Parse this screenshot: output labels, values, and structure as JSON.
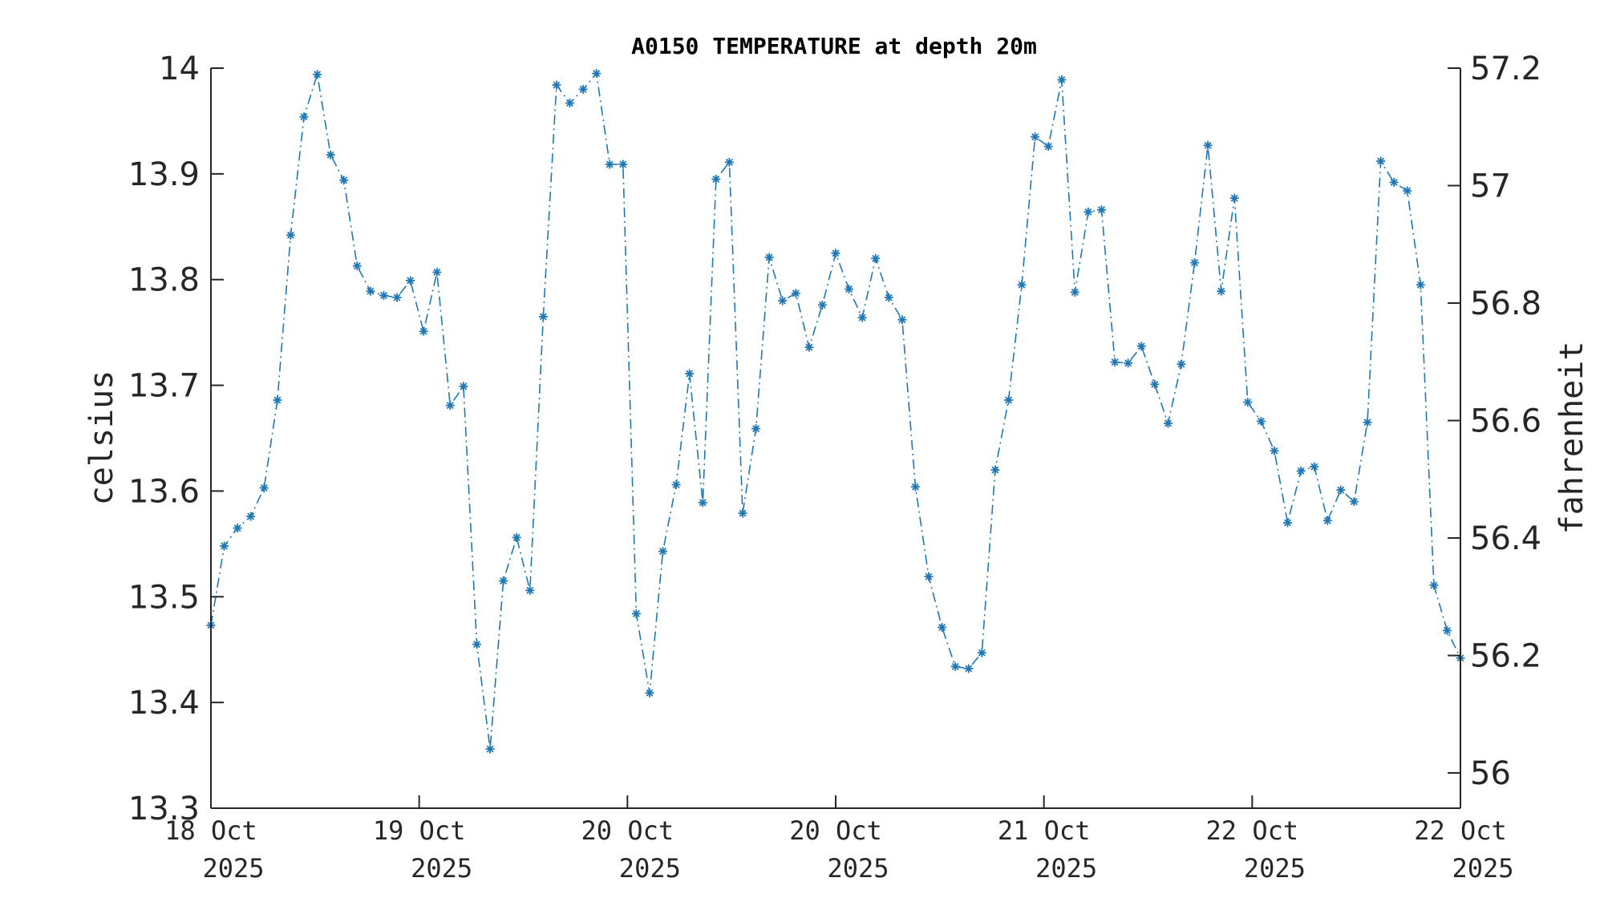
{
  "chart_data": {
    "type": "line",
    "title": "A0150 TEMPERATURE at depth 20m",
    "ylabel": "celsius",
    "ylabel_right": "fahrenheit",
    "ylim": [
      13.3,
      14.0
    ],
    "ylim_right": [
      55.94,
      57.2
    ],
    "yticks": [
      "13.3",
      "13.4",
      "13.5",
      "13.6",
      "13.7",
      "13.8",
      "13.9",
      "14"
    ],
    "yticks_right": [
      "56",
      "56.2",
      "56.4",
      "56.6",
      "56.8",
      "57",
      "57.2"
    ],
    "xticks": [
      [
        "18 Oct",
        "2025"
      ],
      [
        "19 Oct",
        "2025"
      ],
      [
        "20 Oct",
        "2025"
      ],
      [
        "20 Oct",
        "2025"
      ],
      [
        "21 Oct",
        "2025"
      ],
      [
        "22 Oct",
        "2025"
      ],
      [
        "22 Oct",
        "2025"
      ]
    ],
    "line_style": "dash-dot",
    "marker": "asterisk",
    "color": "#1f77b4",
    "grid": false,
    "series": [
      {
        "values": [
          13.473,
          13.548,
          13.565,
          13.576,
          13.603,
          13.686,
          13.842,
          13.954,
          13.994,
          13.918,
          13.894,
          13.813,
          13.789,
          13.785,
          13.783,
          13.799,
          13.751,
          13.807,
          13.681,
          13.699,
          13.455,
          13.356,
          13.515,
          13.556,
          13.506,
          13.765,
          13.984,
          13.967,
          13.98,
          13.995,
          13.909,
          13.909,
          13.484,
          13.409,
          13.543,
          13.606,
          13.711,
          13.589,
          13.895,
          13.911,
          13.579,
          13.659,
          13.821,
          13.78,
          13.787,
          13.736,
          13.776,
          13.825,
          13.791,
          13.764,
          13.82,
          13.783,
          13.762,
          13.604,
          13.519,
          13.471,
          13.434,
          13.432,
          13.447,
          13.62,
          13.686,
          13.795,
          13.935,
          13.926,
          13.989,
          13.788,
          13.864,
          13.866,
          13.722,
          13.721,
          13.737,
          13.701,
          13.664,
          13.72,
          13.816,
          13.927,
          13.789,
          13.877,
          13.684,
          13.666,
          13.638,
          13.57,
          13.619,
          13.623,
          13.572,
          13.601,
          13.59,
          13.665,
          13.912,
          13.892,
          13.884,
          13.795,
          13.511,
          13.468,
          13.442
        ]
      }
    ]
  }
}
